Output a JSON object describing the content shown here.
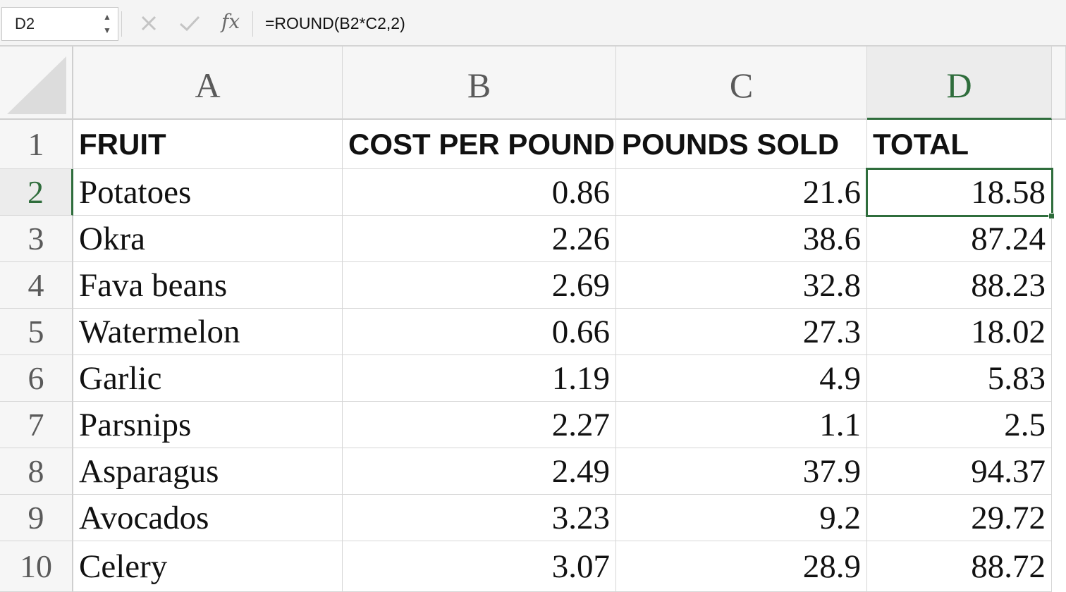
{
  "formula_bar": {
    "name_box": "D2",
    "fx_label": "fx",
    "formula": "=ROUND(B2*C2,2)"
  },
  "columns": [
    "A",
    "B",
    "C",
    "D"
  ],
  "selected_cell": "D2",
  "accent_color": "#2f6d3c",
  "rows": [
    {
      "num": "1",
      "cells": [
        "FRUIT",
        "COST PER POUND",
        "POUNDS SOLD",
        "TOTAL"
      ]
    },
    {
      "num": "2",
      "cells": [
        "Potatoes",
        "0.86",
        "21.6",
        "18.58"
      ]
    },
    {
      "num": "3",
      "cells": [
        "Okra",
        "2.26",
        "38.6",
        "87.24"
      ]
    },
    {
      "num": "4",
      "cells": [
        "Fava beans",
        "2.69",
        "32.8",
        "88.23"
      ]
    },
    {
      "num": "5",
      "cells": [
        "Watermelon",
        "0.66",
        "27.3",
        "18.02"
      ]
    },
    {
      "num": "6",
      "cells": [
        "Garlic",
        "1.19",
        "4.9",
        "5.83"
      ]
    },
    {
      "num": "7",
      "cells": [
        "Parsnips",
        "2.27",
        "1.1",
        "2.5"
      ]
    },
    {
      "num": "8",
      "cells": [
        "Asparagus",
        "2.49",
        "37.9",
        "94.37"
      ]
    },
    {
      "num": "9",
      "cells": [
        "Avocados",
        "3.23",
        "9.2",
        "29.72"
      ]
    },
    {
      "num": "10",
      "cells": [
        "Celery",
        "3.07",
        "28.9",
        "88.72"
      ]
    }
  ]
}
